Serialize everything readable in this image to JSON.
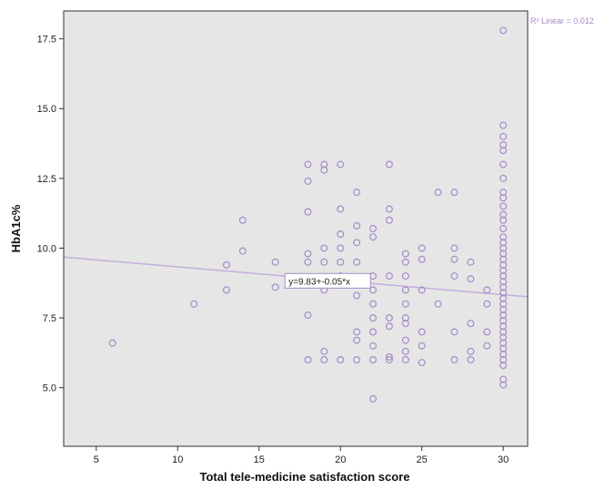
{
  "chart_data": {
    "type": "scatter",
    "title": "",
    "xlabel": "Total tele-medicine satisfaction score",
    "ylabel": "HbA1c%",
    "xlim": [
      3,
      31.5
    ],
    "ylim": [
      2.9,
      18.5
    ],
    "x_ticks": [
      5,
      10,
      15,
      20,
      25,
      30
    ],
    "y_ticks": [
      5.0,
      7.5,
      10.0,
      12.5,
      15.0,
      17.5
    ],
    "x_tick_labels": [
      "5",
      "10",
      "15",
      "20",
      "25",
      "30"
    ],
    "y_tick_labels": [
      "5.0",
      "7.5",
      "10.0",
      "12.5",
      "15.0",
      "17.5"
    ],
    "grid": false,
    "background_color": "#e6e6e6",
    "marker_color": "#a58cc8",
    "line_color": "#c4aee0",
    "regression": {
      "intercept": 9.83,
      "slope": -0.05,
      "equation_label": "y=9.83+-0.05*x",
      "equation_at_x": 20,
      "r2_label": "R² Linear = 0.012"
    },
    "points": [
      [
        6,
        6.6
      ],
      [
        11,
        8.0
      ],
      [
        13,
        9.4
      ],
      [
        13,
        8.5
      ],
      [
        14,
        11.0
      ],
      [
        14,
        9.9
      ],
      [
        16,
        9.5
      ],
      [
        16,
        8.6
      ],
      [
        18,
        13.0
      ],
      [
        18,
        12.4
      ],
      [
        18,
        11.3
      ],
      [
        18,
        9.8
      ],
      [
        18,
        9.5
      ],
      [
        18,
        7.6
      ],
      [
        18,
        6.0
      ],
      [
        19,
        13.0
      ],
      [
        19,
        12.8
      ],
      [
        19,
        10.0
      ],
      [
        19,
        9.5
      ],
      [
        19,
        8.5
      ],
      [
        19,
        6.3
      ],
      [
        19,
        6.0
      ],
      [
        20,
        13.0
      ],
      [
        20,
        11.4
      ],
      [
        20,
        10.5
      ],
      [
        20,
        10.0
      ],
      [
        20,
        9.5
      ],
      [
        20,
        9.0
      ],
      [
        20,
        8.8
      ],
      [
        20,
        6.0
      ],
      [
        21,
        12.0
      ],
      [
        21,
        10.8
      ],
      [
        21,
        10.2
      ],
      [
        21,
        9.5
      ],
      [
        21,
        8.3
      ],
      [
        21,
        7.0
      ],
      [
        21,
        6.7
      ],
      [
        21,
        6.0
      ],
      [
        22,
        10.7
      ],
      [
        22,
        10.4
      ],
      [
        22,
        9.0
      ],
      [
        22,
        8.5
      ],
      [
        22,
        8.0
      ],
      [
        22,
        7.5
      ],
      [
        22,
        7.0
      ],
      [
        22,
        6.5
      ],
      [
        22,
        6.0
      ],
      [
        22,
        4.6
      ],
      [
        23,
        13.0
      ],
      [
        23,
        11.4
      ],
      [
        23,
        11.0
      ],
      [
        23,
        9.0
      ],
      [
        23,
        7.5
      ],
      [
        23,
        6.0
      ],
      [
        23,
        6.1
      ],
      [
        23,
        7.2
      ],
      [
        24,
        9.8
      ],
      [
        24,
        9.5
      ],
      [
        24,
        9.0
      ],
      [
        24,
        8.5
      ],
      [
        24,
        8.0
      ],
      [
        24,
        7.5
      ],
      [
        24,
        7.3
      ],
      [
        24,
        6.7
      ],
      [
        24,
        6.3
      ],
      [
        24,
        6.0
      ],
      [
        25,
        10.0
      ],
      [
        25,
        9.6
      ],
      [
        25,
        8.5
      ],
      [
        25,
        7.0
      ],
      [
        25,
        6.5
      ],
      [
        25,
        5.9
      ],
      [
        26,
        12.0
      ],
      [
        26,
        8.0
      ],
      [
        27,
        12.0
      ],
      [
        27,
        10.0
      ],
      [
        27,
        9.6
      ],
      [
        27,
        9.0
      ],
      [
        27,
        7.0
      ],
      [
        27,
        6.0
      ],
      [
        28,
        9.5
      ],
      [
        28,
        8.9
      ],
      [
        28,
        7.3
      ],
      [
        28,
        6.3
      ],
      [
        28,
        6.0
      ],
      [
        29,
        8.5
      ],
      [
        29,
        8.0
      ],
      [
        29,
        7.0
      ],
      [
        29,
        6.5
      ],
      [
        30,
        17.8
      ],
      [
        30,
        14.4
      ],
      [
        30,
        14.0
      ],
      [
        30,
        13.7
      ],
      [
        30,
        13.5
      ],
      [
        30,
        13.0
      ],
      [
        30,
        12.5
      ],
      [
        30,
        12.0
      ],
      [
        30,
        11.8
      ],
      [
        30,
        11.5
      ],
      [
        30,
        11.2
      ],
      [
        30,
        11.0
      ],
      [
        30,
        10.7
      ],
      [
        30,
        10.4
      ],
      [
        30,
        10.2
      ],
      [
        30,
        10.0
      ],
      [
        30,
        9.8
      ],
      [
        30,
        9.6
      ],
      [
        30,
        9.4
      ],
      [
        30,
        9.2
      ],
      [
        30,
        9.0
      ],
      [
        30,
        8.8
      ],
      [
        30,
        8.6
      ],
      [
        30,
        8.4
      ],
      [
        30,
        8.2
      ],
      [
        30,
        8.0
      ],
      [
        30,
        7.8
      ],
      [
        30,
        7.6
      ],
      [
        30,
        7.4
      ],
      [
        30,
        7.2
      ],
      [
        30,
        7.0
      ],
      [
        30,
        6.8
      ],
      [
        30,
        6.6
      ],
      [
        30,
        6.4
      ],
      [
        30,
        6.2
      ],
      [
        30,
        6.0
      ],
      [
        30,
        5.8
      ],
      [
        30,
        5.3
      ],
      [
        30,
        5.1
      ]
    ]
  }
}
